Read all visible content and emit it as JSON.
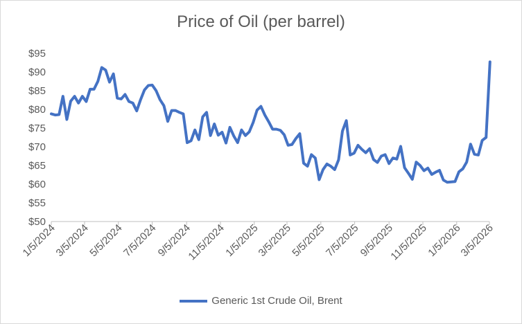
{
  "chart_data": {
    "type": "line",
    "title": "Price of Oil (per barrel)",
    "xlabel": "",
    "ylabel": "",
    "ylim": [
      50,
      95
    ],
    "yticks": [
      50,
      55,
      60,
      65,
      70,
      75,
      80,
      85,
      90,
      95
    ],
    "ytick_labels": [
      "$50",
      "$55",
      "$60",
      "$65",
      "$70",
      "$75",
      "$80",
      "$85",
      "$90",
      "$95"
    ],
    "xlim": [
      "2024-01-05",
      "2026-03-05"
    ],
    "xticks": [
      "2024-01-05",
      "2024-03-05",
      "2024-05-05",
      "2024-07-05",
      "2024-09-05",
      "2024-11-05",
      "2025-01-05",
      "2025-03-05",
      "2025-05-05",
      "2025-07-05",
      "2025-09-05",
      "2025-11-05",
      "2026-01-05",
      "2026-03-05"
    ],
    "xtick_labels": [
      "1/5/2024",
      "3/5/2024",
      "5/5/2024",
      "7/5/2024",
      "9/5/2024",
      "11/5/2024",
      "1/5/2025",
      "3/5/2025",
      "5/5/2025",
      "7/5/2025",
      "9/5/2025",
      "11/5/2025",
      "1/5/2026",
      "3/5/2026"
    ],
    "grid": false,
    "legend_position": "bottom",
    "series": [
      {
        "name": "Generic 1st Crude Oil, Brent",
        "color": "#4472c4",
        "x": [
          "2024-01-05",
          "2024-01-12",
          "2024-01-19",
          "2024-01-26",
          "2024-02-02",
          "2024-02-09",
          "2024-02-16",
          "2024-02-23",
          "2024-03-01",
          "2024-03-08",
          "2024-03-15",
          "2024-03-22",
          "2024-03-29",
          "2024-04-05",
          "2024-04-12",
          "2024-04-19",
          "2024-04-26",
          "2024-05-03",
          "2024-05-10",
          "2024-05-17",
          "2024-05-24",
          "2024-05-31",
          "2024-06-07",
          "2024-06-14",
          "2024-06-21",
          "2024-06-28",
          "2024-07-05",
          "2024-07-12",
          "2024-07-19",
          "2024-07-26",
          "2024-08-02",
          "2024-08-09",
          "2024-08-16",
          "2024-08-23",
          "2024-08-30",
          "2024-09-06",
          "2024-09-13",
          "2024-09-20",
          "2024-09-27",
          "2024-10-04",
          "2024-10-11",
          "2024-10-18",
          "2024-10-25",
          "2024-11-01",
          "2024-11-08",
          "2024-11-15",
          "2024-11-22",
          "2024-11-29",
          "2024-12-06",
          "2024-12-13",
          "2024-12-20",
          "2024-12-27",
          "2025-01-03",
          "2025-01-10",
          "2025-01-17",
          "2025-01-24",
          "2025-01-31",
          "2025-02-07",
          "2025-02-14",
          "2025-02-21",
          "2025-02-28",
          "2025-03-07",
          "2025-03-14",
          "2025-03-21",
          "2025-03-28",
          "2025-04-04",
          "2025-04-11",
          "2025-04-18",
          "2025-04-25",
          "2025-05-02",
          "2025-05-09",
          "2025-05-16",
          "2025-05-23",
          "2025-05-30",
          "2025-06-06",
          "2025-06-13",
          "2025-06-20",
          "2025-06-27",
          "2025-07-04",
          "2025-07-11",
          "2025-07-18",
          "2025-07-25",
          "2025-08-01",
          "2025-08-08",
          "2025-08-15",
          "2025-08-22",
          "2025-08-29",
          "2025-09-05",
          "2025-09-12",
          "2025-09-19",
          "2025-09-26",
          "2025-10-03",
          "2025-10-10",
          "2025-10-17",
          "2025-10-24",
          "2025-10-31",
          "2025-11-07",
          "2025-11-14",
          "2025-11-21",
          "2025-11-28",
          "2025-12-05",
          "2025-12-12",
          "2025-12-19",
          "2025-12-26",
          "2026-01-02",
          "2026-01-09",
          "2026-01-16",
          "2026-01-23",
          "2026-01-30",
          "2026-02-06",
          "2026-02-13",
          "2026-02-20",
          "2026-02-27",
          "2026-03-06"
        ],
        "values": [
          78.8,
          78.5,
          78.6,
          83.5,
          77.3,
          82.2,
          83.5,
          81.7,
          83.5,
          82.1,
          85.4,
          85.4,
          87.5,
          91.2,
          90.5,
          87.3,
          89.5,
          83.0,
          82.8,
          84.0,
          82.1,
          81.7,
          79.6,
          82.6,
          85.2,
          86.4,
          86.5,
          85.0,
          82.6,
          81.0,
          76.8,
          79.7,
          79.7,
          79.2,
          78.8,
          71.1,
          71.6,
          74.5,
          71.9,
          78.0,
          79.2,
          73.0,
          76.1,
          73.1,
          73.9,
          71.0,
          75.2,
          72.9,
          71.1,
          74.5,
          73.0,
          74.0,
          76.5,
          79.8,
          80.8,
          78.5,
          76.7,
          74.7,
          74.7,
          74.4,
          73.2,
          70.4,
          70.6,
          72.2,
          73.5,
          65.6,
          64.8,
          67.9,
          67.0,
          61.2,
          63.9,
          65.4,
          64.8,
          63.9,
          66.5,
          74.2,
          77.0,
          67.8,
          68.3,
          70.4,
          69.3,
          68.4,
          69.5,
          66.6,
          65.8,
          67.5,
          67.9,
          65.5,
          67.0,
          66.7,
          70.1,
          64.4,
          62.9,
          61.3,
          65.9,
          65.0,
          63.6,
          64.3,
          62.6,
          63.2,
          63.7,
          61.1,
          60.5,
          60.6,
          60.7,
          63.3,
          64.1,
          65.9,
          70.7,
          68.0,
          67.8,
          71.7,
          72.5,
          92.7
        ]
      }
    ]
  }
}
